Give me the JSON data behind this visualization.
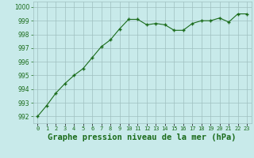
{
  "x": [
    0,
    1,
    2,
    3,
    4,
    5,
    6,
    7,
    8,
    9,
    10,
    11,
    12,
    13,
    14,
    15,
    16,
    17,
    18,
    19,
    20,
    21,
    22,
    23
  ],
  "y": [
    992.0,
    992.8,
    993.7,
    994.4,
    995.0,
    995.5,
    996.3,
    997.1,
    997.6,
    998.4,
    999.1,
    999.1,
    998.7,
    998.8,
    998.7,
    998.3,
    998.3,
    998.8,
    999.0,
    999.0,
    999.2,
    998.9,
    999.5,
    999.5
  ],
  "line_color": "#1a6b1a",
  "marker_color": "#1a6b1a",
  "bg_color": "#c8eaea",
  "grid_color": "#9fbfbf",
  "xlabel": "Graphe pression niveau de la mer (hPa)",
  "xlabel_fontsize": 7.5,
  "xlabel_color": "#1a6b1a",
  "xlabel_weight": "bold",
  "ylim": [
    991.5,
    1000.4
  ],
  "xlim": [
    -0.5,
    23.5
  ],
  "yticks": [
    992,
    993,
    994,
    995,
    996,
    997,
    998,
    999,
    1000
  ],
  "xtick_labels": [
    "0",
    "1",
    "2",
    "3",
    "4",
    "5",
    "6",
    "7",
    "8",
    "9",
    "10",
    "11",
    "12",
    "13",
    "14",
    "15",
    "16",
    "17",
    "18",
    "19",
    "20",
    "21",
    "22",
    "23"
  ],
  "ytick_fontsize": 5.5,
  "xtick_fontsize": 5.0,
  "tick_color": "#1a6b1a"
}
